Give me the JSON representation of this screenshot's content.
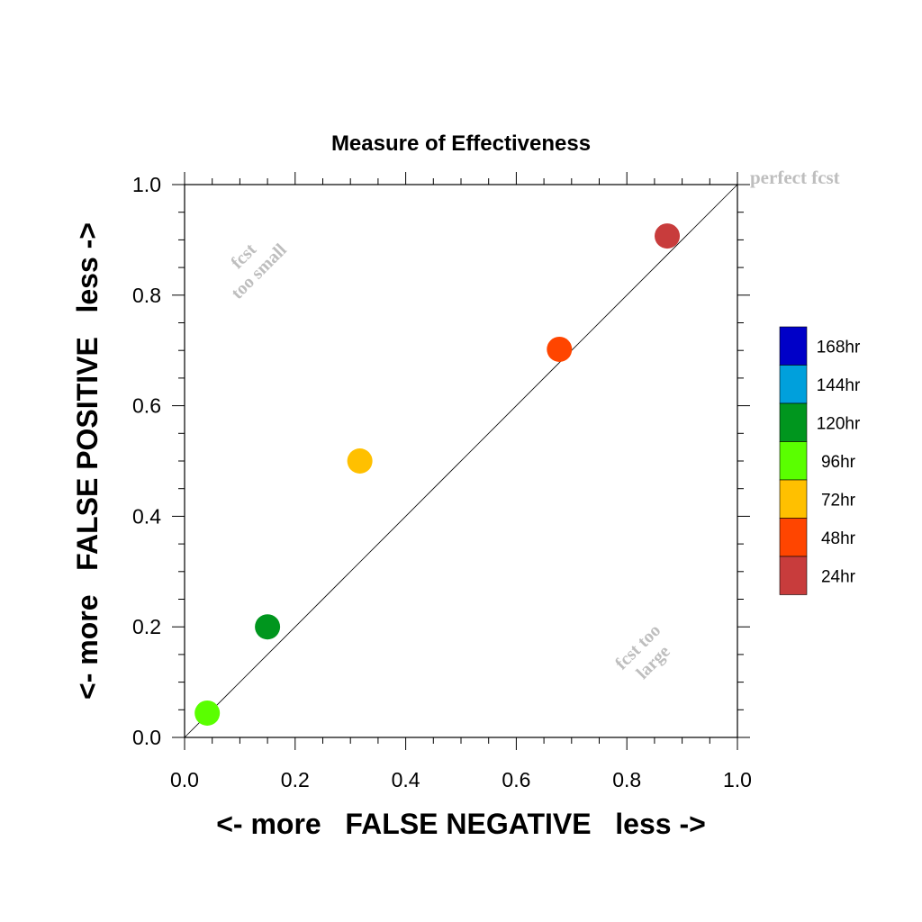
{
  "chart_data": {
    "type": "scatter",
    "title": "Measure of Effectiveness",
    "xlabel": "<- more   FALSE NEGATIVE   less ->",
    "ylabel": "<- more   FALSE POSITIVE   less ->",
    "xlim": [
      0.0,
      1.0
    ],
    "ylim": [
      0.0,
      1.0
    ],
    "x_ticks": [
      "0.0",
      "0.2",
      "0.4",
      "0.6",
      "0.8",
      "1.0"
    ],
    "y_ticks": [
      "0.0",
      "0.2",
      "0.4",
      "0.6",
      "0.8",
      "1.0"
    ],
    "grid": false,
    "reference_line": {
      "from": [
        0,
        0
      ],
      "to": [
        1,
        1
      ]
    },
    "annotations": {
      "perfect": "perfect fcst",
      "small_line1": "fcst",
      "small_line2": "too small",
      "large_line1": "fcst too",
      "large_line2": "large"
    },
    "points": [
      {
        "label": "24hr",
        "x": 0.873,
        "y": 0.907,
        "color": "#C83C3C"
      },
      {
        "label": "48hr",
        "x": 0.678,
        "y": 0.702,
        "color": "#FF4500"
      },
      {
        "label": "72hr",
        "x": 0.317,
        "y": 0.5,
        "color": "#FFC000"
      },
      {
        "label": "96hr",
        "x": 0.041,
        "y": 0.044,
        "color": "#5AFF00"
      },
      {
        "label": "120hr",
        "x": 0.15,
        "y": 0.2,
        "color": "#00961E"
      }
    ],
    "legend": {
      "placement": "right",
      "entries": [
        {
          "label": "168hr",
          "color": "#0000C8"
        },
        {
          "label": "144hr",
          "color": "#00A0DC"
        },
        {
          "label": "120hr",
          "color": "#00961E"
        },
        {
          "label": "96hr",
          "color": "#5AFF00"
        },
        {
          "label": "72hr",
          "color": "#FFC000"
        },
        {
          "label": "48hr",
          "color": "#FF4500"
        },
        {
          "label": "24hr",
          "color": "#C83C3C"
        }
      ]
    }
  }
}
